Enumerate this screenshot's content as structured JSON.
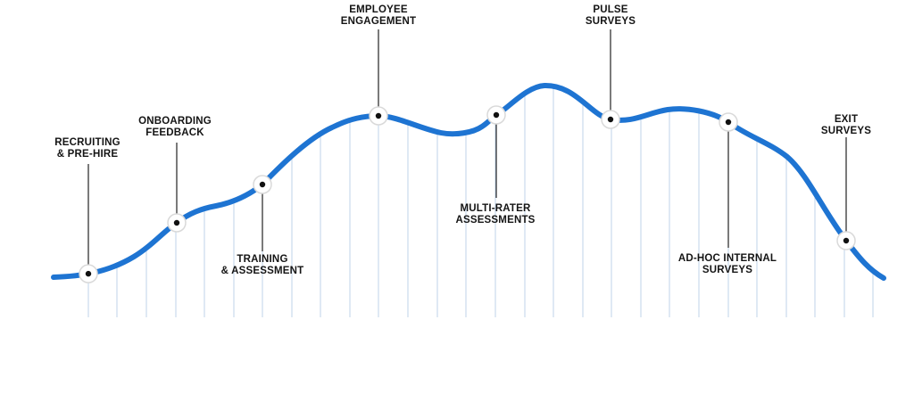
{
  "colors": {
    "curve": "#1e74d2",
    "gridline": "#bfd3ea",
    "leader": "#222222",
    "marker_fill": "#ffffff",
    "marker_ring": "#d9d9d9",
    "marker_dot": "#111111",
    "text": "#141414"
  },
  "milestones": [
    {
      "id": "recruiting",
      "lines": [
        "RECRUITING",
        "& PRE-HIRE"
      ]
    },
    {
      "id": "onboarding",
      "lines": [
        "ONBOARDING",
        "FEEDBACK"
      ]
    },
    {
      "id": "training",
      "lines": [
        "TRAINING",
        "& ASSESSMENT"
      ]
    },
    {
      "id": "engagement",
      "lines": [
        "EMPLOYEE",
        "ENGAGEMENT"
      ]
    },
    {
      "id": "multirater",
      "lines": [
        "MULTI-RATER",
        "ASSESSMENTS"
      ]
    },
    {
      "id": "pulse",
      "lines": [
        "PULSE",
        "SURVEYS"
      ]
    },
    {
      "id": "adhoc",
      "lines": [
        "AD-HOC INTERNAL",
        "SURVEYS"
      ]
    },
    {
      "id": "exit",
      "lines": [
        "EXIT",
        "SURVEYS"
      ]
    }
  ]
}
